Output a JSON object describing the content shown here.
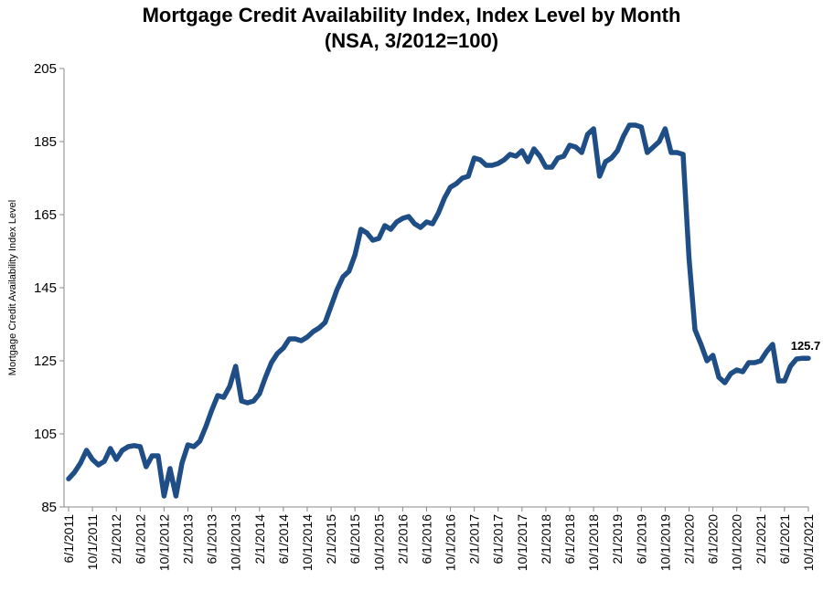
{
  "chart_data": {
    "type": "line",
    "title": "Mortgage Credit Availability Index, Index Level by Month",
    "subtitle": "(NSA, 3/2012=100)",
    "xlabel": "",
    "ylabel": "Mortgage Credit Availability Index Level",
    "ylim": [
      85,
      205
    ],
    "yticks": [
      85,
      105,
      125,
      145,
      165,
      185,
      205
    ],
    "x_start": "6/1/2011",
    "x_end": "10/1/2021",
    "x_frequency": "monthly",
    "xtick_labels": [
      "6/1/2011",
      "10/1/2011",
      "2/1/2012",
      "6/1/2012",
      "10/1/2012",
      "2/1/2013",
      "6/1/2013",
      "10/1/2013",
      "2/1/2014",
      "6/1/2014",
      "10/1/2014",
      "2/1/2015",
      "6/1/2015",
      "10/1/2015",
      "2/1/2016",
      "6/1/2016",
      "10/1/2016",
      "2/1/2017",
      "6/1/2017",
      "10/1/2017",
      "2/1/2018",
      "6/1/2018",
      "10/1/2018",
      "2/1/2019",
      "6/1/2019",
      "10/1/2019",
      "2/1/2020",
      "6/1/2020",
      "10/1/2020",
      "2/1/2021",
      "6/1/2021",
      "10/1/2021"
    ],
    "grid": false,
    "legend": "none",
    "line_color": "#1f4e87",
    "series": [
      {
        "values": [
          92.7,
          94.5,
          97,
          100.5,
          98,
          96.5,
          97.5,
          101,
          98,
          100.5,
          101.5,
          101.8,
          101.5,
          96,
          99,
          99,
          88,
          95.5,
          88,
          97,
          102,
          101.5,
          103,
          107,
          111.5,
          115.5,
          115,
          118,
          123.5,
          114,
          113.5,
          114,
          116,
          120.5,
          124.5,
          127,
          128.5,
          131,
          131,
          130.5,
          131.5,
          133,
          134,
          135.5,
          140,
          144.5,
          148,
          149.5,
          154,
          161,
          160,
          158,
          158.5,
          162,
          161,
          163,
          164,
          164.5,
          162.5,
          161.5,
          163,
          162.5,
          165.5,
          169.5,
          172.5,
          173.5,
          175,
          175.5,
          180.5,
          180,
          178.5,
          178.5,
          179,
          180,
          181.5,
          181,
          182.5,
          179.5,
          183,
          181,
          178,
          178,
          180.5,
          181,
          184,
          183.5,
          182,
          187,
          188.5,
          175.5,
          179.5,
          180.5,
          182.5,
          186.5,
          189.5,
          189.5,
          189,
          182,
          183.5,
          185,
          188.5,
          182,
          182,
          181.5,
          153,
          133.5,
          129.5,
          125,
          126.5,
          120.5,
          119,
          121.5,
          122.5,
          122,
          124.5,
          124.5,
          125,
          127.5,
          129.5,
          119.5,
          119.5,
          123.5,
          125.5,
          125.7,
          125.7
        ]
      }
    ],
    "annotations": [
      {
        "text": "125.7",
        "x": "10/1/2021",
        "y": 125.7
      }
    ]
  }
}
